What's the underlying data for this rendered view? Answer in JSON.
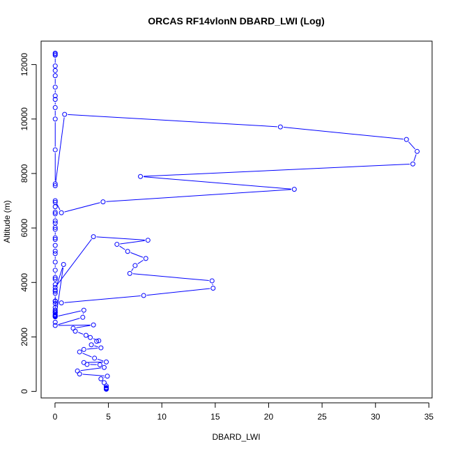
{
  "chart_data": {
    "type": "line",
    "title": "ORCAS RF14vlonN DBARD_LWI (Log)",
    "xlabel": "DBARD_LWI",
    "ylabel": "Altitude (m)",
    "xlim": [
      -1.3,
      35.3
    ],
    "ylim": [
      -240,
      12860
    ],
    "xticks": [
      0,
      5,
      10,
      15,
      20,
      25,
      30,
      35
    ],
    "yticks": [
      0,
      2000,
      4000,
      6000,
      8000,
      10000,
      12000
    ],
    "grid": false,
    "legend": "none",
    "line_color": "#0000ff",
    "marker": "open-circle",
    "series": [
      {
        "x": [
          0.02,
          0.02,
          0.02,
          0.02,
          0.02,
          0.02,
          0.02,
          0.02,
          0.02,
          0.02,
          0.02,
          0.02,
          0.02,
          0.02,
          0.9,
          21.1,
          32.9,
          33.9,
          33.5,
          8.0,
          22.4,
          4.5,
          0.6,
          0.02,
          0.02,
          0.02,
          0.02,
          0.02,
          0.02,
          0.02,
          0.02,
          0.02,
          0.02,
          0.02,
          0.02,
          0.02,
          0.02,
          0.02,
          0.02,
          0.02,
          0.02,
          0.02,
          0.02,
          3.6,
          8.7,
          5.8,
          6.8,
          8.5,
          7.5,
          7.0,
          14.7,
          14.8,
          8.3,
          0.6,
          0.02,
          0.02,
          0.02,
          0.02,
          0.02,
          0.02,
          0.02,
          0.02,
          0.02,
          0.02,
          0.8,
          0.02,
          0.02,
          0.02,
          0.02,
          0.02,
          0.02,
          0.02,
          0.02,
          2.7,
          2.6,
          0.02,
          3.6,
          1.7,
          1.9,
          2.9,
          3.3,
          4.1,
          3.9,
          3.4,
          4.3,
          2.7,
          2.3,
          3.7,
          4.8,
          2.7,
          3.0,
          4.2,
          4.6,
          2.1,
          2.3,
          4.9,
          4.3,
          4.6,
          4.8,
          4.8,
          4.8,
          4.8,
          4.8,
          4.8
        ],
        "y": [
          12420,
          12380,
          12340,
          11950,
          11780,
          11590,
          11170,
          10850,
          10720,
          10420,
          10000,
          8870,
          7620,
          7550,
          10170,
          9710,
          9250,
          8810,
          8350,
          7890,
          7420,
          6960,
          6560,
          7000,
          6940,
          6780,
          6580,
          6520,
          6260,
          6180,
          6020,
          5950,
          5640,
          5580,
          5360,
          5150,
          5060,
          4750,
          4450,
          4180,
          4120,
          3920,
          3820,
          5680,
          5550,
          5400,
          5140,
          4880,
          4620,
          4330,
          4060,
          3790,
          3520,
          3250,
          3320,
          3310,
          3230,
          3080,
          2980,
          2890,
          2820,
          2780,
          2740,
          2540,
          4660,
          3720,
          3670,
          3600,
          2930,
          2880,
          2800,
          2760,
          2740,
          2980,
          2720,
          2420,
          2440,
          2320,
          2210,
          2060,
          1980,
          1860,
          1840,
          1710,
          1600,
          1540,
          1450,
          1220,
          1080,
          1060,
          990,
          980,
          880,
          750,
          640,
          560,
          460,
          320,
          200,
          140,
          120,
          100,
          90,
          80
        ]
      }
    ]
  }
}
